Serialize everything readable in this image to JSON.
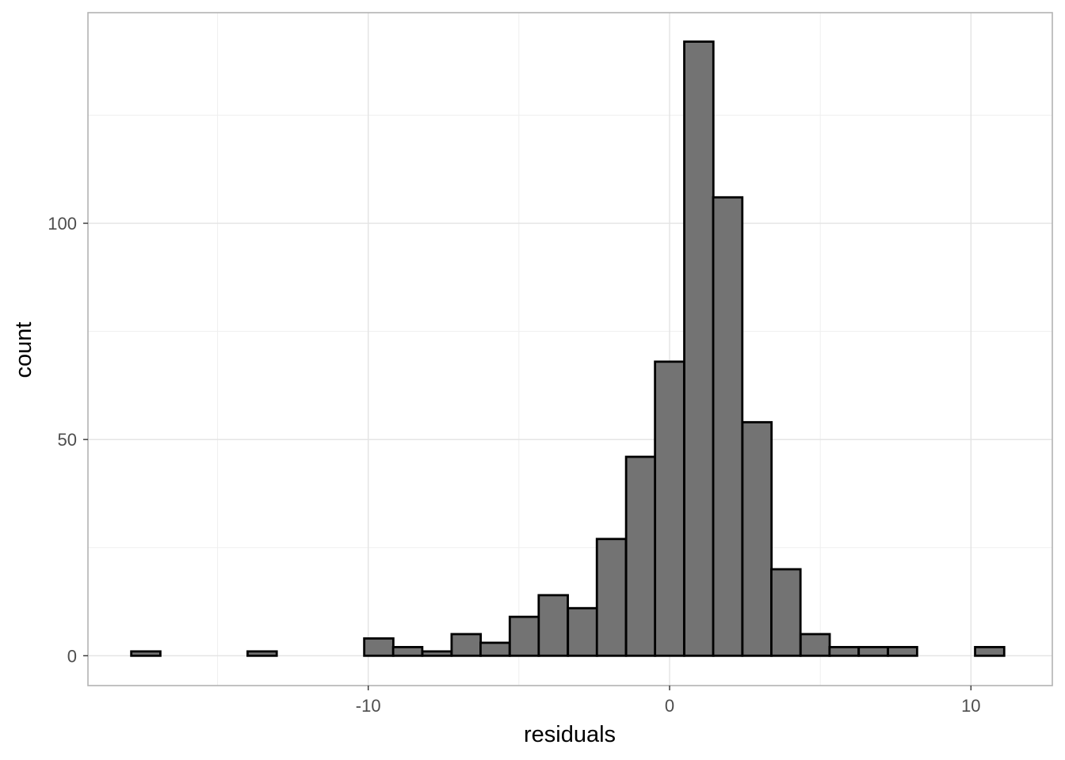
{
  "chart_data": {
    "type": "bar",
    "subtype": "histogram",
    "title": "",
    "xlabel": "residuals",
    "ylabel": "count",
    "xlim": [
      -19.3,
      12.7
    ],
    "ylim": [
      -6.9,
      148.7
    ],
    "x_ticks": [
      -10,
      0,
      10
    ],
    "x_tick_labels": [
      "-10",
      "0",
      "10"
    ],
    "y_ticks": [
      0,
      50,
      100
    ],
    "y_tick_labels": [
      "0",
      "50",
      "100"
    ],
    "grid": true,
    "legend": "none",
    "bin_width": 0.966,
    "bin_centers": [
      -17.38,
      -16.41,
      -15.45,
      -14.48,
      -13.52,
      -12.55,
      -11.58,
      -10.62,
      -9.65,
      -8.69,
      -7.72,
      -6.75,
      -5.79,
      -4.82,
      -3.86,
      -2.89,
      -1.93,
      -0.96,
      0.0,
      0.97,
      1.93,
      2.9,
      3.86,
      4.83,
      5.79,
      6.76,
      7.73,
      8.69,
      9.66,
      10.62
    ],
    "counts": [
      1,
      0,
      0,
      0,
      1,
      0,
      0,
      0,
      4,
      2,
      1,
      5,
      3,
      9,
      14,
      11,
      27,
      46,
      68,
      142,
      106,
      54,
      20,
      5,
      2,
      2,
      2,
      0,
      0,
      2
    ],
    "colors": {
      "fill": "#737373",
      "outline": "#000000",
      "grid_major": "#e3e3e3",
      "grid_minor": "#efefef",
      "panel_border": "#b3b3b3"
    }
  }
}
